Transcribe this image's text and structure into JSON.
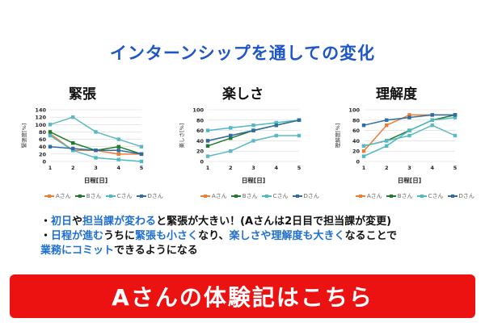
{
  "page": {
    "title": "インターンシップを通しての変化"
  },
  "colors": {
    "A": "#ed7d31",
    "B": "#1f7a2e",
    "C": "#4fb9c4",
    "D": "#2e6ea6"
  },
  "chart_data": [
    {
      "type": "line",
      "title": "緊張",
      "xlabel": "日程[日]",
      "ylabel": "緊張度[%]",
      "x": [
        1,
        2,
        3,
        4,
        5
      ],
      "ylim": [
        0,
        140
      ],
      "yticks": [
        0,
        20,
        40,
        60,
        80,
        100,
        120,
        140
      ],
      "grid": true,
      "legend": "bottom",
      "series": [
        {
          "name": "Aさん",
          "color": "#ed7d31",
          "values": [
            75,
            30,
            30,
            20,
            20
          ]
        },
        {
          "name": "Bさん",
          "color": "#1f7a2e",
          "values": [
            80,
            50,
            30,
            40,
            20
          ]
        },
        {
          "name": "Cさん",
          "color": "#4fb9c4",
          "values": [
            70,
            30,
            10,
            5,
            0
          ]
        },
        {
          "name": "Dさん",
          "color": "#2e6ea6",
          "values": [
            40,
            35,
            30,
            30,
            20
          ]
        },
        {
          "name": "",
          "color": "#5cb8c2",
          "values": [
            100,
            120,
            80,
            60,
            40
          ]
        }
      ]
    },
    {
      "type": "line",
      "title": "楽しさ",
      "xlabel": "日程[日]",
      "ylabel": "楽しさ[%]",
      "x": [
        1,
        2,
        3,
        4,
        5
      ],
      "ylim": [
        0,
        100
      ],
      "yticks": [
        0,
        20,
        40,
        60,
        80,
        100
      ],
      "grid": true,
      "legend": "bottom",
      "series": [
        {
          "name": "Aさん",
          "color": "#ed7d31",
          "values": [
            40,
            50,
            60,
            70,
            80
          ]
        },
        {
          "name": "Bさん",
          "color": "#1f7a2e",
          "values": [
            30,
            45,
            60,
            70,
            80
          ]
        },
        {
          "name": "Cさん",
          "color": "#4fb9c4",
          "values": [
            60,
            65,
            70,
            75,
            80
          ]
        },
        {
          "name": "Dさん",
          "color": "#2e6ea6",
          "values": [
            40,
            50,
            60,
            70,
            80
          ]
        },
        {
          "name": "",
          "color": "#5cb8c2",
          "values": [
            10,
            20,
            40,
            50,
            50
          ]
        }
      ]
    },
    {
      "type": "line",
      "title": "理解度",
      "xlabel": "日程[日]",
      "ylabel": "理解度[%]",
      "x": [
        1,
        2,
        3,
        4,
        5
      ],
      "ylim": [
        0,
        100
      ],
      "yticks": [
        0,
        20,
        40,
        60,
        80,
        100
      ],
      "grid": true,
      "legend": "bottom",
      "series": [
        {
          "name": "Aさん",
          "color": "#ed7d31",
          "values": [
            20,
            70,
            90,
            90,
            90
          ]
        },
        {
          "name": "Bさん",
          "color": "#1f7a2e",
          "values": [
            30,
            40,
            60,
            80,
            90
          ]
        },
        {
          "name": "Cさん",
          "color": "#4fb9c4",
          "values": [
            10,
            30,
            60,
            80,
            85
          ]
        },
        {
          "name": "Dさん",
          "color": "#2e6ea6",
          "values": [
            70,
            80,
            85,
            90,
            90
          ]
        },
        {
          "name": "",
          "color": "#5cb8c2",
          "values": [
            30,
            40,
            50,
            70,
            50
          ]
        }
      ]
    }
  ],
  "notes": [
    [
      {
        "text": "・",
        "hl": false
      },
      {
        "text": "初日",
        "hl": true
      },
      {
        "text": "や",
        "hl": false
      },
      {
        "text": "担当課が変わる",
        "hl": true
      },
      {
        "text": "と緊張が大きい！(Aさんは2日目で担当課が変更)",
        "hl": false
      }
    ],
    [
      {
        "text": "・",
        "hl": false
      },
      {
        "text": "日程が進む",
        "hl": true
      },
      {
        "text": "うちに",
        "hl": false
      },
      {
        "text": "緊張も小さく",
        "hl": true
      },
      {
        "text": "なり、",
        "hl": false
      },
      {
        "text": "楽しさや理解度も大きく",
        "hl": true
      },
      {
        "text": "なることで",
        "hl": false
      }
    ],
    [
      {
        "text": "業務にコミット",
        "hl": true
      },
      {
        "text": "できるようになる",
        "hl": false
      }
    ]
  ],
  "cta": {
    "label": "Aさんの体験記はこちら"
  }
}
